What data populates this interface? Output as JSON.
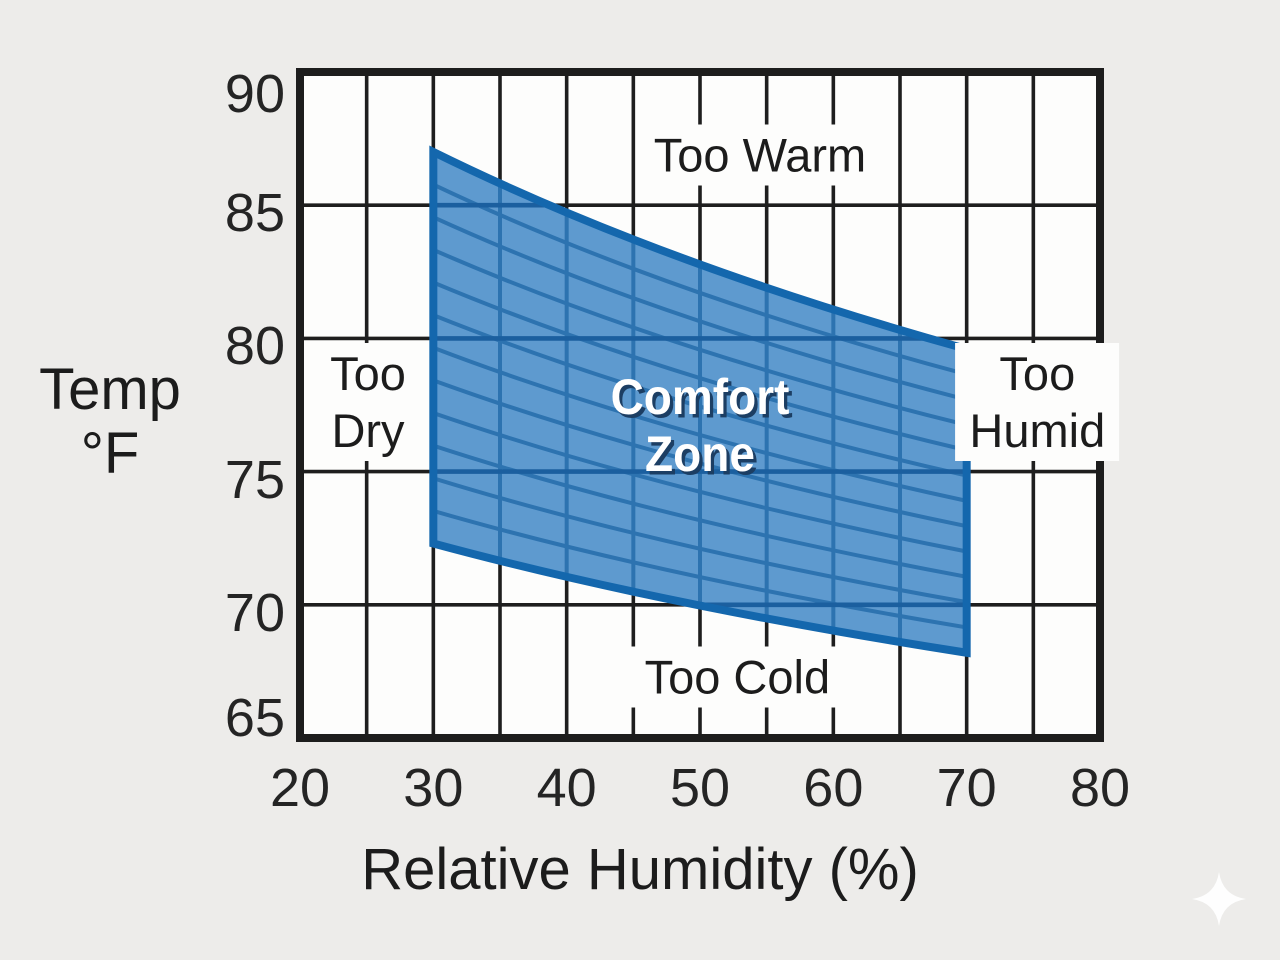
{
  "chart_data": {
    "type": "area",
    "title": "",
    "xlabel": "Relative Humidity (%)",
    "ylabel_lines": [
      "Temp",
      "°F"
    ],
    "xlim": [
      20,
      80
    ],
    "ylim": [
      65,
      90
    ],
    "x_ticks": [
      20,
      30,
      40,
      50,
      60,
      70,
      80
    ],
    "y_ticks": [
      90,
      85,
      80,
      75,
      70,
      65
    ],
    "x_grid_step": 5,
    "y_grid_step": 5,
    "grid": true,
    "comfort_zone": {
      "label_lines": [
        "Comfort",
        "Zone"
      ],
      "humidity_range": [
        30,
        70
      ],
      "temp_range_at_30_percent": [
        72.3,
        87.0
      ],
      "temp_range_at_70_percent": [
        68.2,
        79.6
      ],
      "top_edge_quad": {
        "start": [
          30,
          87.0
        ],
        "control": [
          47,
          82.8
        ],
        "end": [
          70,
          79.6
        ]
      },
      "bottom_edge_quad": {
        "start": [
          30,
          72.3
        ],
        "control": [
          47,
          70.0
        ],
        "end": [
          70,
          68.2
        ]
      },
      "hatch_rows": 12,
      "hatch_col_step": 5
    },
    "annotations": [
      {
        "id": "too-warm",
        "lines": [
          "Too Warm"
        ],
        "x": 54.5,
        "y": 86.9,
        "boxed": true
      },
      {
        "id": "too-dry",
        "lines": [
          "Too",
          "Dry"
        ],
        "x": 25.1,
        "y": 77.6,
        "boxed": true
      },
      {
        "id": "too-humid",
        "lines": [
          "Too",
          "Humid"
        ],
        "x": 75.3,
        "y": 77.6,
        "boxed": true
      },
      {
        "id": "too-cold",
        "lines": [
          "Too Cold"
        ],
        "x": 52.8,
        "y": 67.3,
        "boxed": true
      }
    ],
    "zone_label_anchor": {
      "x": 50.0,
      "y": 76.7
    },
    "colors": {
      "page_background": "#edecea",
      "plot_background": "#fdfdfc",
      "grid_line": "#1e1e1e",
      "axis_border": "#1d1d1d",
      "zone_fill": "#5e9acf",
      "zone_hatch": "#2d73b0",
      "zone_gridline_showthrough": "#1b5f9f",
      "zone_border": "#1467ad",
      "annotation_text": "#1c1c1c",
      "tick_text": "#242424",
      "zone_label_text": "#ffffff",
      "zone_label_shadow": "#1c3e63",
      "watermark": "#ffffff"
    }
  },
  "watermark": {
    "icon": "sparkle-icon"
  }
}
